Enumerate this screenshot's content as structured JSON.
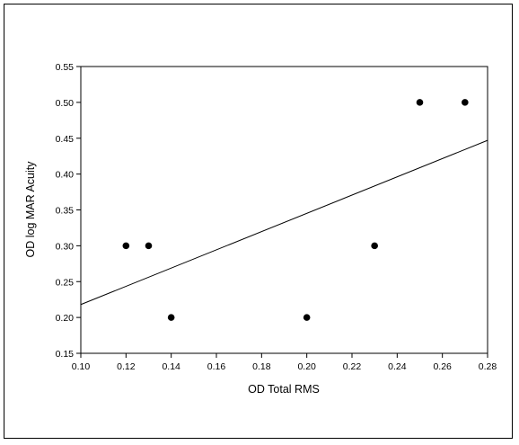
{
  "chart_data": {
    "type": "scatter",
    "xlabel": "OD Total RMS",
    "ylabel": "OD log MAR Acuity",
    "xlim": [
      0.1,
      0.28
    ],
    "ylim": [
      0.15,
      0.55
    ],
    "x_ticks": [
      "0.10",
      "0.12",
      "0.14",
      "0.16",
      "0.18",
      "0.20",
      "0.22",
      "0.24",
      "0.26",
      "0.28"
    ],
    "y_ticks": [
      "0.15",
      "0.20",
      "0.25",
      "0.30",
      "0.35",
      "0.40",
      "0.45",
      "0.50",
      "0.55"
    ],
    "points": [
      {
        "x": 0.12,
        "y": 0.3
      },
      {
        "x": 0.13,
        "y": 0.3
      },
      {
        "x": 0.14,
        "y": 0.2
      },
      {
        "x": 0.2,
        "y": 0.2
      },
      {
        "x": 0.23,
        "y": 0.3
      },
      {
        "x": 0.25,
        "y": 0.5
      },
      {
        "x": 0.27,
        "y": 0.5
      }
    ],
    "regression_line": {
      "x_start": 0.1,
      "y_start": 0.218,
      "x_end": 0.28,
      "y_end": 0.447
    },
    "grid": false,
    "legend": "none",
    "marker_color": "#000000",
    "line_color": "#000000"
  }
}
